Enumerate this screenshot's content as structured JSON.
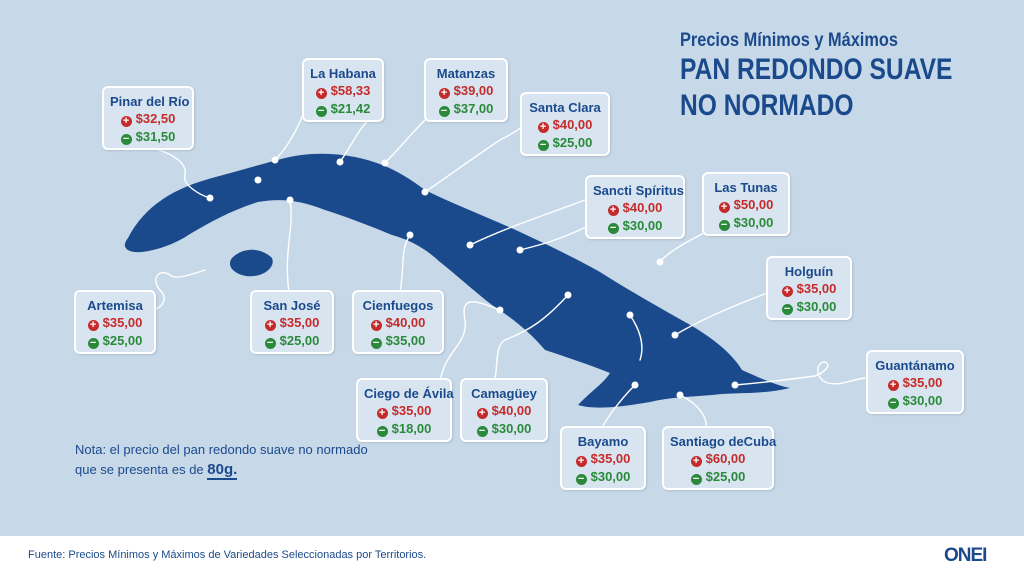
{
  "title": {
    "subtitle": "Precios Mínimos y Máximos",
    "line1": "PAN REDONDO SUAVE",
    "line2": "NO NORMADO"
  },
  "icons": {
    "max": "plus-circle-icon",
    "min": "minus-circle-icon"
  },
  "colors": {
    "background": "#c7d8e8",
    "island": "#1b4a8c",
    "max_price": "#c62b2b",
    "min_price": "#2a8a3a"
  },
  "provinces": [
    {
      "name": "Pinar del Río",
      "max": "$32,50",
      "min": "$31,50"
    },
    {
      "name": "La Habana",
      "max": "$58,33",
      "min": "$21,42"
    },
    {
      "name": "Matanzas",
      "max": "$39,00",
      "min": "$37,00"
    },
    {
      "name": "Santa Clara",
      "max": "$40,00",
      "min": "$25,00"
    },
    {
      "name": "Sancti Spíritus",
      "max": "$40,00",
      "min": "$30,00"
    },
    {
      "name": "Las Tunas",
      "max": "$50,00",
      "min": "$30,00"
    },
    {
      "name": "Holguín",
      "max": "$35,00",
      "min": "$30,00"
    },
    {
      "name": "Artemisa",
      "max": "$35,00",
      "min": "$25,00"
    },
    {
      "name": "San José",
      "max": "$35,00",
      "min": "$25,00"
    },
    {
      "name": "Cienfuegos",
      "max": "$40,00",
      "min": "$35,00"
    },
    {
      "name": "Ciego de Ávila",
      "max": "$35,00",
      "min": "$18,00"
    },
    {
      "name": "Camagüey",
      "max": "$40,00",
      "min": "$30,00"
    },
    {
      "name": "Guantánamo",
      "max": "$35,00",
      "min": "$30,00"
    },
    {
      "name": "Bayamo",
      "max": "$35,00",
      "min": "$30,00"
    },
    {
      "name": "Santiago deCuba",
      "max": "$60,00",
      "min": "$25,00"
    }
  ],
  "note": {
    "text": "Nota: el precio del pan redondo suave no normado que se presenta es de",
    "weight": "80g."
  },
  "footer": {
    "source": "Fuente: Precios Mínimos y Máximos de Variedades Seleccionadas por Territorios.",
    "logo": "ONEI"
  }
}
